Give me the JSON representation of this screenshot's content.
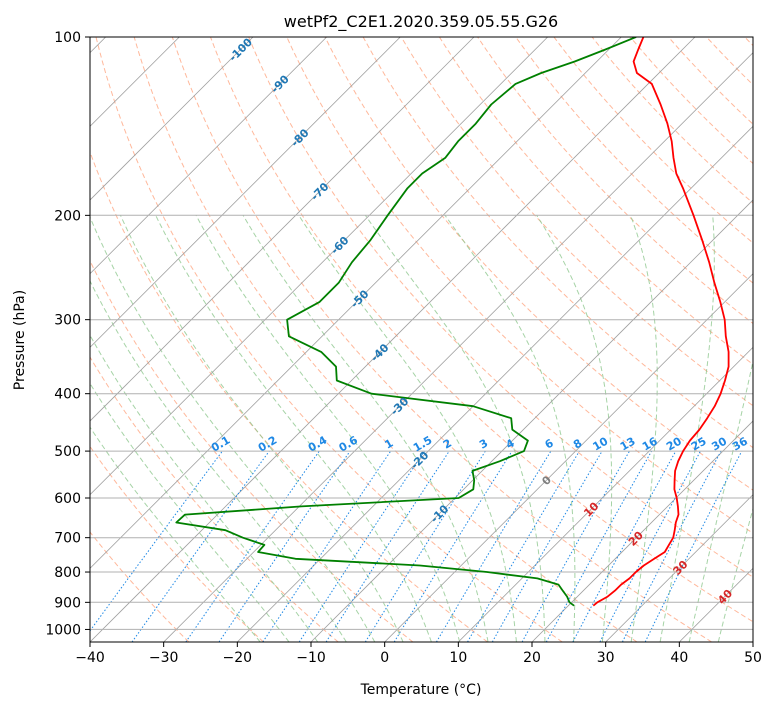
{
  "chart_data": {
    "type": "line",
    "title": "wetPf2_C2E1.2020.359.05.55.G26",
    "xlabel": "Temperature (°C)",
    "ylabel": "Pressure (hPa)",
    "xlim": [
      -40,
      50
    ],
    "ylim": [
      1050,
      100
    ],
    "yscale": "log",
    "grid": true,
    "x_ticks": [
      -40,
      -30,
      -20,
      -10,
      0,
      10,
      20,
      30,
      40,
      50
    ],
    "y_ticks": [
      100,
      200,
      300,
      400,
      500,
      600,
      700,
      800,
      900,
      1000
    ],
    "skew_degrees": 45,
    "series": [
      {
        "color": "#ff0000",
        "points": [
          [
            23.4,
            912
          ],
          [
            23.5,
            900
          ],
          [
            24.1,
            880
          ],
          [
            24.3,
            860
          ],
          [
            24.3,
            840
          ],
          [
            24.6,
            820
          ],
          [
            24.6,
            800
          ],
          [
            24.8,
            780
          ],
          [
            25.3,
            760
          ],
          [
            25.8,
            740
          ],
          [
            25.4,
            720
          ],
          [
            25.0,
            700
          ],
          [
            24.2,
            680
          ],
          [
            23.3,
            660
          ],
          [
            22.6,
            640
          ],
          [
            21.4,
            620
          ],
          [
            20.1,
            600
          ],
          [
            18.6,
            580
          ],
          [
            17.4,
            560
          ],
          [
            16.2,
            540
          ],
          [
            15.3,
            520
          ],
          [
            14.6,
            500
          ],
          [
            14.1,
            480
          ],
          [
            13.9,
            460
          ],
          [
            13.4,
            440
          ],
          [
            12.8,
            420
          ],
          [
            11.9,
            400
          ],
          [
            10.7,
            380
          ],
          [
            9.3,
            360
          ],
          [
            7.3,
            340
          ],
          [
            4.8,
            320
          ],
          [
            2.4,
            300
          ],
          [
            -0.6,
            280
          ],
          [
            -4.0,
            260
          ],
          [
            -7.5,
            240
          ],
          [
            -11.5,
            220
          ],
          [
            -16.0,
            200
          ],
          [
            -21.1,
            180
          ],
          [
            -24.0,
            170
          ],
          [
            -26.5,
            160
          ],
          [
            -29.0,
            150
          ],
          [
            -32.0,
            140
          ],
          [
            -35.5,
            130
          ],
          [
            -39.5,
            120
          ],
          [
            -43.0,
            115
          ],
          [
            -45.0,
            110
          ],
          [
            -46.0,
            105
          ],
          [
            -47.0,
            100
          ]
        ]
      },
      {
        "color": "#008000",
        "points": [
          [
            20.8,
            912
          ],
          [
            19.7,
            900
          ],
          [
            18.6,
            880
          ],
          [
            17.2,
            860
          ],
          [
            15.8,
            840
          ],
          [
            12.1,
            820
          ],
          [
            4.4,
            800
          ],
          [
            -5.6,
            780
          ],
          [
            -23.4,
            760
          ],
          [
            -29.4,
            740
          ],
          [
            -29.5,
            720
          ],
          [
            -33.4,
            700
          ],
          [
            -36.8,
            680
          ],
          [
            -44.5,
            660
          ],
          [
            -44.4,
            640
          ],
          [
            -29.7,
            620
          ],
          [
            -9.5,
            600
          ],
          [
            -8.7,
            580
          ],
          [
            -9.8,
            560
          ],
          [
            -11.3,
            540
          ],
          [
            -8.9,
            520
          ],
          [
            -7.0,
            500
          ],
          [
            -7.9,
            480
          ],
          [
            -11.5,
            460
          ],
          [
            -13.2,
            440
          ],
          [
            -20.0,
            420
          ],
          [
            -35.5,
            400
          ],
          [
            -42.0,
            380
          ],
          [
            -44.0,
            360
          ],
          [
            -48.0,
            340
          ],
          [
            -54.5,
            320
          ],
          [
            -57.0,
            300
          ],
          [
            -55.0,
            280
          ],
          [
            -55.0,
            260
          ],
          [
            -56.0,
            240
          ],
          [
            -56.5,
            220
          ],
          [
            -57.5,
            200
          ],
          [
            -58.5,
            180
          ],
          [
            -58.5,
            170
          ],
          [
            -57.5,
            160
          ],
          [
            -58.0,
            150
          ],
          [
            -58.0,
            140
          ],
          [
            -58.5,
            130
          ],
          [
            -58.0,
            120
          ],
          [
            -56.0,
            115
          ],
          [
            -53.0,
            110
          ],
          [
            -50.5,
            105
          ],
          [
            -48.0,
            100
          ]
        ]
      }
    ],
    "mixing_ratio_labels": [
      "0.1",
      "0.2",
      "0.4",
      "0.6",
      "1",
      "1.5",
      "2",
      "3",
      "4",
      "6",
      "8",
      "10",
      "13",
      "16",
      "20",
      "25",
      "30",
      "36"
    ],
    "mixing_ratio_values": [
      0.1,
      0.2,
      0.4,
      0.6,
      1,
      1.5,
      2,
      3,
      4,
      6,
      8,
      10,
      13,
      16,
      20,
      25,
      30,
      36
    ],
    "isotherm_labels": [
      {
        "text": "-100",
        "value": -100,
        "color": "#1f77b4"
      },
      {
        "text": "-90",
        "value": -90,
        "color": "#1f77b4"
      },
      {
        "text": "-80",
        "value": -80,
        "color": "#1f77b4"
      },
      {
        "text": "-70",
        "value": -70,
        "color": "#1f77b4"
      },
      {
        "text": "-60",
        "value": -60,
        "color": "#1f77b4"
      },
      {
        "text": "-50",
        "value": -50,
        "color": "#1f77b4"
      },
      {
        "text": "-40",
        "value": -40,
        "color": "#1f77b4"
      },
      {
        "text": "-30",
        "value": -30,
        "color": "#1f77b4"
      },
      {
        "text": "-20",
        "value": -20,
        "color": "#1f77b4"
      },
      {
        "text": "-10",
        "value": -10,
        "color": "#1f77b4"
      },
      {
        "text": "0",
        "value": 0,
        "color": "#7f7f7f"
      },
      {
        "text": "10",
        "value": 10,
        "color": "#d62728"
      },
      {
        "text": "20",
        "value": 20,
        "color": "#d62728"
      },
      {
        "text": "30",
        "value": 30,
        "color": "#d62728"
      },
      {
        "text": "40",
        "value": 40,
        "color": "#d62728"
      }
    ],
    "colors": {
      "grid": "#b0b0b0",
      "isotherm": "#a0a0a0",
      "dry_adiabat": "#ffa07a",
      "moist_adiabat": "#90c890",
      "mixing_ratio": "#1e88e5"
    }
  }
}
